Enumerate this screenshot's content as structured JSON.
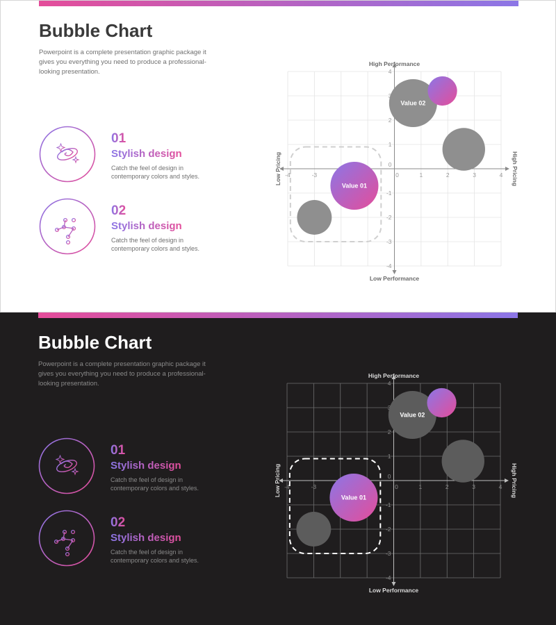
{
  "slides": [
    {
      "theme": "light",
      "title": "Bubble Chart",
      "description": "Powerpoint is a complete presentation graphic package it gives you everything  you need to produce a professional-looking presentation.",
      "features": [
        {
          "number": "01",
          "title": "Stylish design",
          "text": "Catch the feel of design in contemporary colors and styles.",
          "icon": "galaxy-icon"
        },
        {
          "number": "02",
          "title": "Stylish design",
          "text": "Catch the feel of design in contemporary colors and styles.",
          "icon": "constellation-icon"
        }
      ]
    },
    {
      "theme": "dark",
      "title": "Bubble Chart",
      "description": "Powerpoint is a complete presentation graphic package it gives you everything  you need to produce a professional-looking presentation.",
      "features": [
        {
          "number": "01",
          "title": "Stylish design",
          "text": "Catch the feel of design in contemporary colors and styles.",
          "icon": "galaxy-icon"
        },
        {
          "number": "02",
          "title": "Stylish design",
          "text": "Catch the feel of design in contemporary colors and styles.",
          "icon": "constellation-icon"
        }
      ]
    }
  ],
  "chart_data": {
    "type": "scatter",
    "xlim": [
      -4,
      4
    ],
    "ylim": [
      -4,
      4
    ],
    "grid": true,
    "x_ticks": [
      -4,
      -3,
      -2,
      -1,
      0,
      1,
      2,
      3,
      4
    ],
    "y_ticks": [
      -4,
      -3,
      -2,
      -1,
      0,
      1,
      2,
      3,
      4
    ],
    "axis_labels": {
      "top": "High Performance",
      "bottom": "Low Performance",
      "left": "Low Pricing",
      "right": "High Pricing"
    },
    "bubbles": [
      {
        "x": 0.7,
        "y": 2.7,
        "r": 0.9,
        "label": "Value 02",
        "style": "gray"
      },
      {
        "x": 1.8,
        "y": 3.2,
        "r": 0.55,
        "label": "",
        "style": "gradient"
      },
      {
        "x": 2.6,
        "y": 0.8,
        "r": 0.8,
        "label": "",
        "style": "gray"
      },
      {
        "x": -1.5,
        "y": -0.7,
        "r": 0.9,
        "label": "Value 01",
        "style": "gradient"
      },
      {
        "x": -3.0,
        "y": -2.0,
        "r": 0.65,
        "label": "",
        "style": "gray"
      }
    ],
    "highlight_region": {
      "x0": -3.9,
      "y0": -3.0,
      "x1": -0.5,
      "y1": 0.9
    }
  },
  "colors": {
    "gradient_start": "#8c76e6",
    "gradient_end": "#e44d9a",
    "gray_light": "#8f8f8f",
    "gray_dark": "#5c5c5c"
  }
}
